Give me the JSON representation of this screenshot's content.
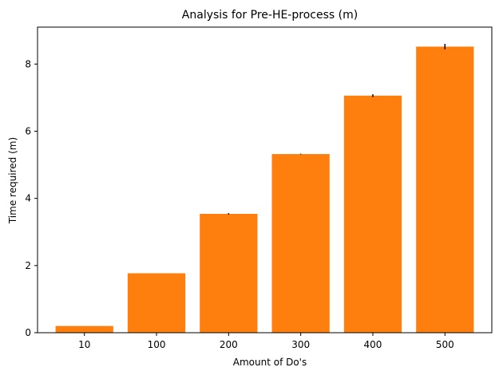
{
  "chart_data": {
    "type": "bar",
    "title": "Analysis for Pre-HE-process (m)",
    "xlabel": "Amount of Do's",
    "ylabel": "Time required (m)",
    "categories": [
      "10",
      "100",
      "200",
      "300",
      "400",
      "500"
    ],
    "values": [
      0.2,
      1.77,
      3.54,
      5.32,
      7.06,
      8.52
    ],
    "errors": [
      0.0,
      0.0,
      0.02,
      0.01,
      0.04,
      0.08
    ],
    "ylim": [
      0,
      9.1
    ],
    "yticks": [
      0,
      2,
      4,
      6,
      8
    ],
    "bar_color": "#ff7f0e",
    "error_color": "#000000",
    "grid": false,
    "legend": "none"
  }
}
